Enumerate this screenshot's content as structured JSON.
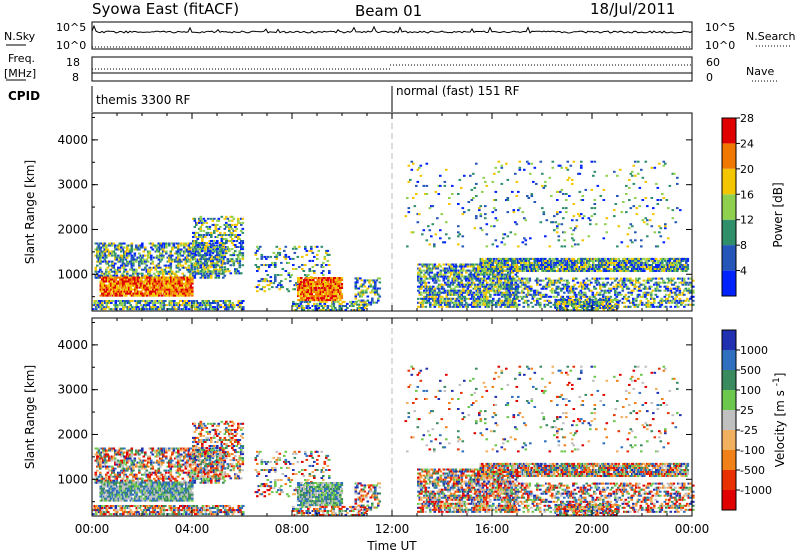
{
  "header": {
    "station": "Syowa East (fitACF)",
    "beam": "Beam 01",
    "date": "18/Jul/2011"
  },
  "sky_panel": {
    "left_label": "N.Sky",
    "right_label": "N.Search",
    "left_ticks": [
      "10^5",
      "10^0"
    ],
    "right_ticks": [
      "10^5",
      "10^0"
    ]
  },
  "freq_panel": {
    "left_label_line1": "Freq.",
    "left_label_line2": "[MHz]",
    "right_label": "Nave",
    "left_ticks": [
      "18",
      "8"
    ],
    "right_ticks": [
      "60",
      "0"
    ]
  },
  "cpid_panel": {
    "label": "CPID",
    "modes": [
      {
        "name": "themis 3300 RF",
        "start_hour": 0
      },
      {
        "name": "normal (fast) 151 RF",
        "start_hour": 12
      }
    ]
  },
  "chart_data": [
    {
      "type": "heatmap",
      "name": "power",
      "ylabel": "Slant Range [km]",
      "y_ticks": [
        "1000",
        "2000",
        "3000",
        "4000"
      ],
      "ylim": [
        180,
        4600
      ],
      "xlim": [
        0,
        24
      ],
      "colorbar": {
        "label": "Power [dB]",
        "tick_labels": [
          "4",
          "8",
          "12",
          "16",
          "20",
          "24",
          "28"
        ],
        "colors": [
          "#0022ff",
          "#2356b8",
          "#2e8f6a",
          "#8fd14f",
          "#f4c600",
          "#f07800",
          "#e00000"
        ]
      }
    },
    {
      "type": "heatmap",
      "name": "velocity",
      "ylabel": "Slant Range [km]",
      "y_ticks": [
        "1000",
        "2000",
        "3000",
        "4000"
      ],
      "ylim": [
        180,
        4600
      ],
      "xlim": [
        0,
        24
      ],
      "colorbar": {
        "label": "Velocity [m s^-1]",
        "tick_labels": [
          "1000",
          "500",
          "100",
          "25",
          "-25",
          "-100",
          "-500",
          "-1000"
        ],
        "colors": [
          "#2030b0",
          "#2e6fc0",
          "#3a8a60",
          "#6cc84c",
          "#c0c0c0",
          "#f0b060",
          "#f08018",
          "#e83000",
          "#e00000"
        ]
      }
    }
  ],
  "x_axis": {
    "ticks": [
      "00:00",
      "04:00",
      "08:00",
      "12:00",
      "16:00",
      "20:00",
      "00:00"
    ],
    "label": "Time UT"
  },
  "scatter_regions": [
    {
      "t": [
        0.1,
        5.3
      ],
      "r": [
        900,
        1700
      ],
      "density": 0.5
    },
    {
      "t": [
        0.3,
        4.0
      ],
      "r": [
        500,
        950
      ],
      "density": 0.9,
      "strong": true
    },
    {
      "t": [
        0.0,
        6.0
      ],
      "r": [
        200,
        400
      ],
      "density": 0.6
    },
    {
      "t": [
        4.0,
        6.0
      ],
      "r": [
        1000,
        2300
      ],
      "density": 0.35
    },
    {
      "t": [
        6.5,
        9.5
      ],
      "r": [
        600,
        1600
      ],
      "density": 0.2
    },
    {
      "t": [
        8.2,
        10.0
      ],
      "r": [
        400,
        900
      ],
      "density": 0.8,
      "strong": true
    },
    {
      "t": [
        8.0,
        11.0
      ],
      "r": [
        180,
        400
      ],
      "density": 0.5
    },
    {
      "t": [
        10.5,
        11.5
      ],
      "r": [
        300,
        900
      ],
      "density": 0.35
    },
    {
      "t": [
        13.0,
        17.0
      ],
      "r": [
        250,
        1200
      ],
      "density": 0.6
    },
    {
      "t": [
        15.5,
        23.8
      ],
      "r": [
        1050,
        1350
      ],
      "density": 0.8
    },
    {
      "t": [
        16.5,
        24.0
      ],
      "r": [
        250,
        900
      ],
      "density": 0.4
    },
    {
      "t": [
        18.5,
        21.0
      ],
      "r": [
        180,
        450
      ],
      "density": 0.6
    },
    {
      "t": [
        12.5,
        23.5
      ],
      "r": [
        1600,
        3500
      ],
      "density": 0.05
    }
  ]
}
